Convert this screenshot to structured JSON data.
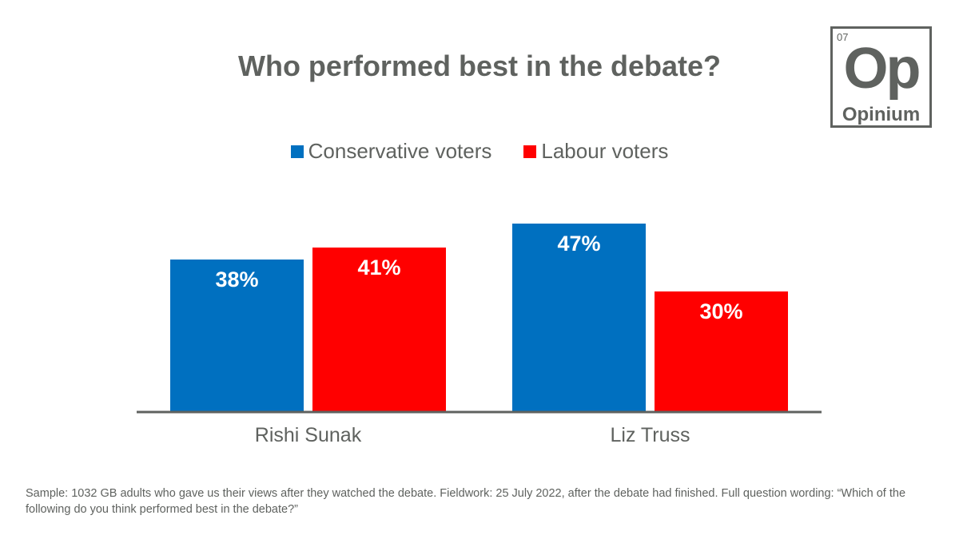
{
  "logo": {
    "number": "07",
    "symbol": "Op",
    "name": "Opinium"
  },
  "chart_data": {
    "type": "bar",
    "title": "Who performed best in the debate?",
    "categories": [
      "Rishi Sunak",
      "Liz Truss"
    ],
    "series": [
      {
        "name": "Conservative voters",
        "color": "#0070c0",
        "values": [
          38,
          47
        ],
        "labels": [
          "38%",
          "47%"
        ]
      },
      {
        "name": "Labour voters",
        "color": "#ff0000",
        "values": [
          41,
          30
        ],
        "labels": [
          "41%",
          "30%"
        ]
      }
    ],
    "ylim": [
      0,
      50
    ],
    "grid": false,
    "legend": "top-center",
    "axis_color": "#5f625f"
  },
  "footnote": "Sample: 1032 GB adults who gave us their views after they watched the debate. Fieldwork: 25 July 2022, after the debate had finished. Full question wording: “Which of the following do you think performed best in the debate?”"
}
